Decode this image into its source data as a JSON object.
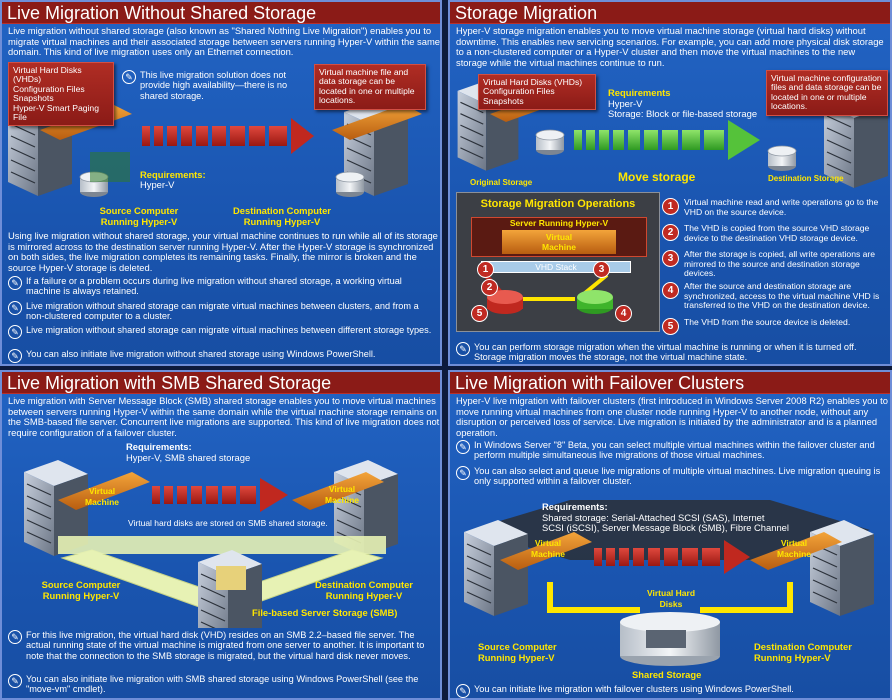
{
  "panels": {
    "tl": {
      "title": "Live Migration Without Shared Storage",
      "intro": "Live migration without shared storage (also known as \"Shared Nothing Live Migration\") enables you to migrate virtual machines and their associated storage between servers running Hyper-V within the same domain. This kind of live migration uses only an Ethernet connection.",
      "callout_left": [
        "Virtual Hard Disks (VHDs)",
        "Configuration Files",
        "Snapshots",
        "Hyper-V Smart Paging File"
      ],
      "note_ha": "This live migration solution does not provide high availability—there is no shared storage.",
      "callout_right": "Virtual machine file and data storage can be located in one or multiple locations.",
      "req_label": "Requirements:",
      "req_value": "Hyper-V",
      "source": [
        "Source Computer",
        "Running Hyper-V"
      ],
      "dest": [
        "Destination Computer",
        "Running Hyper-V"
      ],
      "body": "Using live migration without shared storage, your virtual machine continues to run while all of its storage is mirrored across to the destination server running Hyper-V. After the Hyper-V storage is synchronized on both sides, the live migration completes its remaining tasks. Finally, the mirror is broken and the source Hyper-V storage is deleted.",
      "notes": [
        "If a failure or a problem occurs during live migration without shared storage, a working virtual machine is always retained.",
        "Live migration without shared storage can migrate virtual machines between clusters, and from a non-clustered computer to a cluster.",
        "Live migration without shared storage can migrate virtual machines between different storage types.",
        "You can also initiate live migration without shared storage using Windows PowerShell."
      ]
    },
    "tr": {
      "title": "Storage Migration",
      "intro": "Hyper-V storage migration enables you to move virtual machine storage (virtual hard disks) without downtime. This enables new servicing scenarios. For example, you can add more physical disk storage to a non-clustered computer or a Hyper-V cluster and then move the virtual machines to the new storage while the virtual machines continue to run.",
      "callout_left": [
        "Virtual Hard Disks (VHDs)",
        "Configuration Files",
        "Snapshots"
      ],
      "req_label": "Requirements",
      "req_lines": [
        "Hyper-V",
        "Storage: Block or file-based storage"
      ],
      "callout_right": "Virtual machine configuration files and data storage can be located in one or multiple locations.",
      "original_storage": "Original Storage",
      "move_storage": "Move storage",
      "destination_storage": "Destination Storage",
      "ops_title": "Storage Migration Operations",
      "server_label": "Server Running Hyper-V",
      "vm_label": [
        "Virtual",
        "Machine"
      ],
      "vhd_stack": "VHD Stack",
      "steps": [
        "Virtual machine read and write operations go to the VHD on the source device.",
        "The VHD is copied from the source VHD storage device to the destination VHD storage device.",
        "After the storage is copied, all write operations are mirrored to the source and destination storage devices.",
        "After the source and destination storage are synchronized, access to the virtual machine VHD is transferred to the VHD on the destination device.",
        "The VHD from the source device is deleted."
      ],
      "note": "You can perform storage migration when the virtual machine is running or when it is turned off. Storage migration moves the storage, not the virtual machine state."
    },
    "bl": {
      "title": "Live Migration with SMB Shared Storage",
      "intro": "Live migration with Server Message Block (SMB) shared storage enables you to move virtual machines between servers running Hyper-V within the same domain while the virtual machine storage remains on the SMB-based file server. Concurrent live migrations are supported. This kind of live migration does not require configuration of a failover cluster.",
      "req_label": "Requirements:",
      "req_value": "Hyper-V, SMB shared storage",
      "vm_label": [
        "Virtual",
        "Machine"
      ],
      "disks_note": "Virtual hard disks are stored on SMB shared storage.",
      "source": [
        "Source Computer",
        "Running Hyper-V"
      ],
      "dest": [
        "Destination Computer",
        "Running Hyper-V"
      ],
      "file_storage": "File-based Server Storage (SMB)",
      "notes": [
        "For this live migration, the virtual hard disk (VHD) resides on an SMB 2.2–based file server. The actual running state of the virtual machine is migrated from one server to another. It is important to note that the connection to the SMB storage is migrated, but the virtual hard disk never moves.",
        "You can also initiate live migration with SMB shared storage using Windows PowerShell (see the \"move-vm\" cmdlet)."
      ]
    },
    "br": {
      "title": "Live Migration with Failover Clusters",
      "intro": "Hyper-V live migration with failover clusters (first introduced in Windows Server 2008 R2) enables you to move running virtual machines from one cluster node running Hyper-V to another node, without any disruption or perceived loss of service. Live migration is initiated by the administrator and is a planned operation.",
      "notes": [
        "In Windows Server \"8\" Beta, you can select multiple virtual machines within the failover cluster and perform multiple simultaneous live migrations of those virtual machines.",
        "You can also select and queue live migrations of multiple virtual machines. Live migration queuing is only supported within a failover cluster."
      ],
      "req_label": "Requirements:",
      "req_lines": [
        "Shared storage: Serial-Attached SCSI (SAS), Internet",
        "SCSI (iSCSI), Server Message Block (SMB), Fibre Channel"
      ],
      "vm_label": [
        "Virtual",
        "Machine"
      ],
      "vhd_label": [
        "Virtual Hard",
        "Disks"
      ],
      "source": [
        "Source Computer",
        "Running Hyper-V"
      ],
      "dest": [
        "Destination Computer",
        "Running Hyper-V"
      ],
      "shared_storage": "Shared Storage",
      "final_note": "You can initiate live migration with failover clusters using Windows PowerShell."
    }
  },
  "colors": {
    "panel_blue": "#1d5bb8",
    "title_red": "#8b1b17",
    "accent_yellow": "#ffe600",
    "arrow_green": "#55c23a",
    "arrow_red": "#c0281f"
  }
}
